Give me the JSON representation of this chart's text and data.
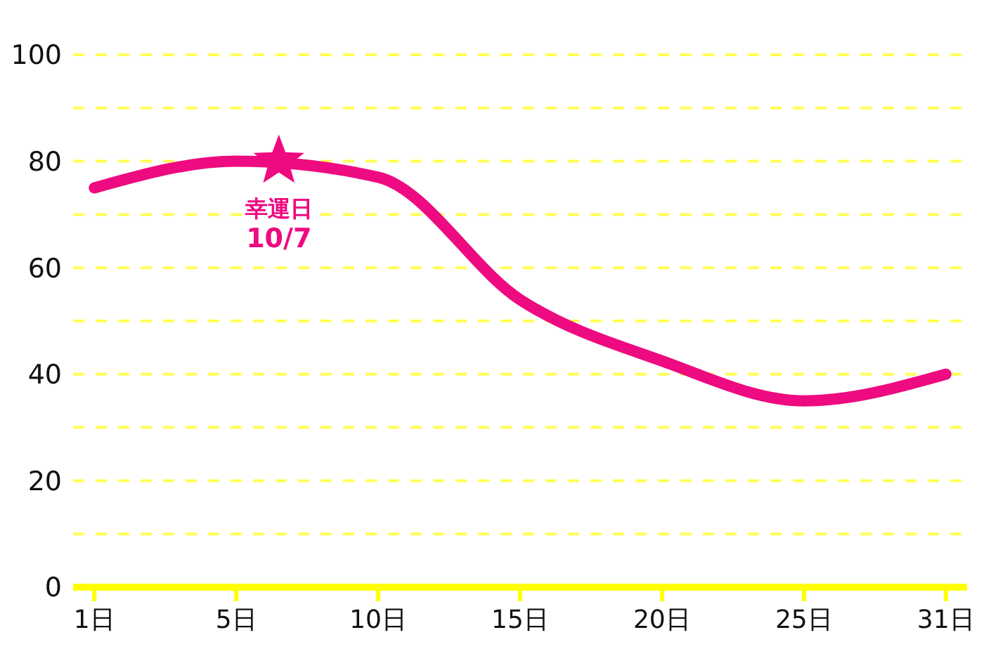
{
  "chart_data": {
    "type": "line",
    "categories": [
      "1日",
      "5日",
      "10日",
      "15日",
      "20日",
      "25日",
      "31日"
    ],
    "series": [
      {
        "color": "#ee0a80",
        "values": [
          75,
          80,
          77,
          54,
          42.5,
          35,
          40
        ]
      }
    ],
    "ylim": [
      0,
      100
    ],
    "yticks": [
      0,
      {
        "value": 10,
        "label": null
      },
      20,
      {
        "value": 30,
        "label": null
      },
      40,
      {
        "value": 50,
        "label": null
      },
      60,
      {
        "value": 70,
        "label": null
      },
      80,
      {
        "value": 90,
        "label": null
      },
      100
    ],
    "grid": "y",
    "legend": false,
    "marker": "none",
    "line_style": "solid",
    "annotations": [
      {
        "text": "幸運日\n10/7",
        "y": 80
      }
    ]
  }
}
